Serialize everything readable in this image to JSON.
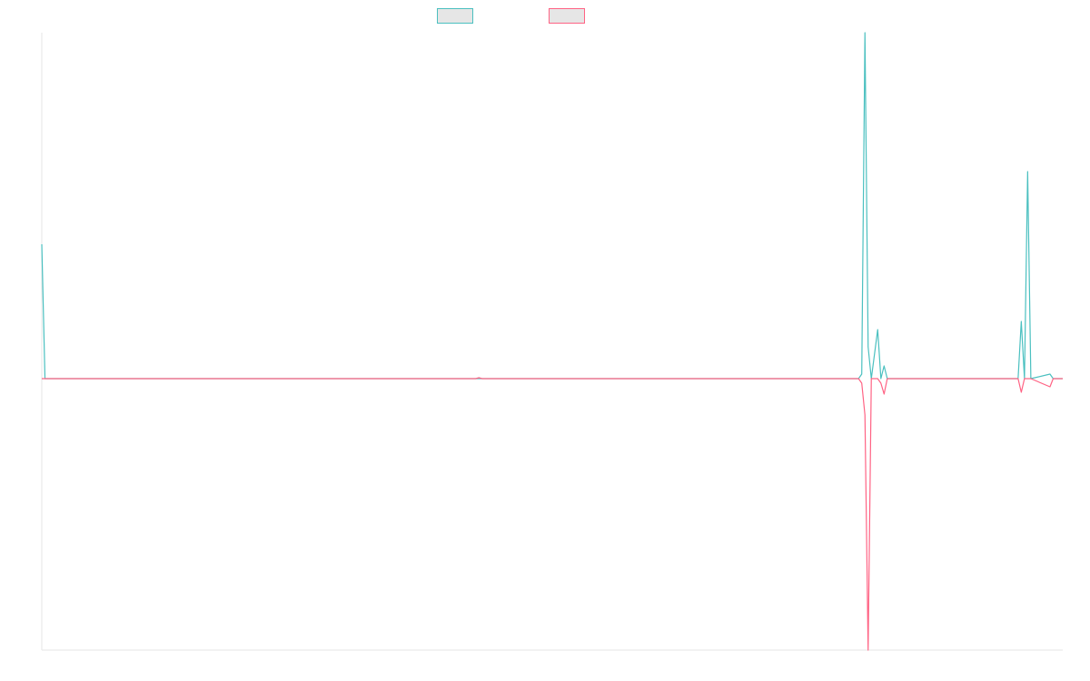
{
  "chart_data": {
    "type": "line",
    "x": [
      0,
      1,
      136,
      137,
      138,
      256,
      257,
      258,
      259,
      260,
      262,
      263,
      264,
      265,
      306,
      307,
      308,
      309,
      310,
      316,
      317,
      320
    ],
    "series": [
      {
        "color": "#4bc0c0",
        "values": [
          148,
          0,
          0,
          0,
          0,
          0,
          5,
          381,
          35,
          0,
          54,
          0,
          14,
          0,
          0,
          63,
          0,
          228,
          0,
          5,
          0,
          0
        ]
      },
      {
        "color": "#ff6384",
        "values": [
          0,
          0,
          0,
          1,
          0,
          0,
          -5,
          -40,
          -299,
          0,
          0,
          -5,
          -17,
          0,
          0,
          -15,
          0,
          0,
          0,
          -9,
          0,
          0
        ]
      }
    ],
    "xlim": [
      0,
      320
    ],
    "ylim": [
      -299,
      381
    ]
  }
}
